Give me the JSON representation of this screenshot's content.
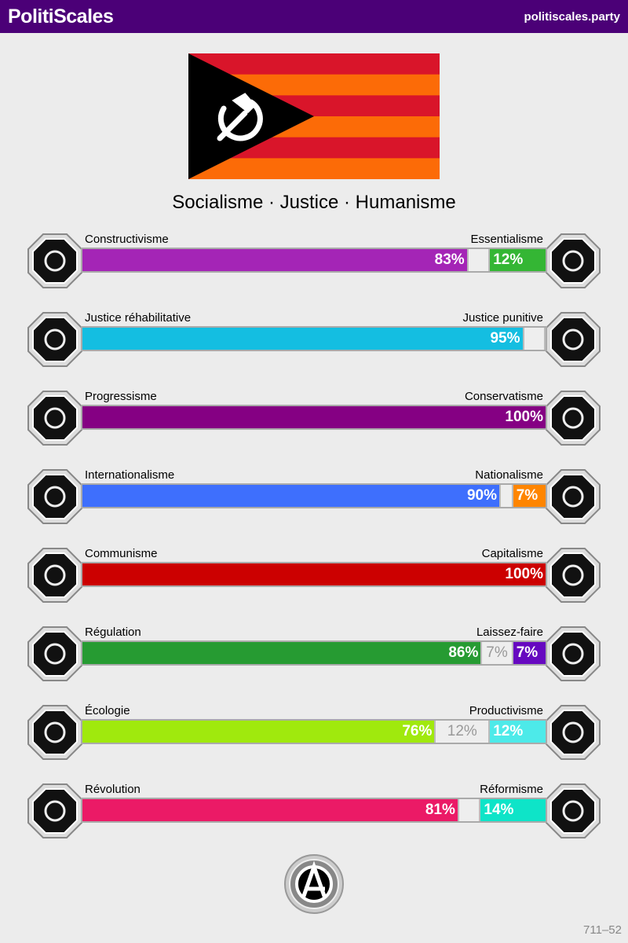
{
  "header": {
    "brand": "PolitiScales",
    "site": "politiscales.party"
  },
  "flag": {
    "stripes": [
      "#d9152a",
      "#fc6b07"
    ],
    "triangle": "#000000",
    "emblem": "hammer-and-sickle-icon"
  },
  "slogan": "Socialisme · Justice · Humanisme",
  "axes": [
    {
      "left": "Constructivisme",
      "right": "Essentialisme",
      "left_pct": 83,
      "neutral_pct": 5,
      "right_pct": 12,
      "left_color": "#a425b6",
      "right_color": "#34b634",
      "left_icon": "eye-icon",
      "right_icon": "flower-icon"
    },
    {
      "left": "Justice réhabilitative",
      "right": "Justice punitive",
      "left_pct": 95,
      "neutral_pct": 5,
      "right_pct": 0,
      "left_color": "#14bee1",
      "right_color": "#e6cc27",
      "left_icon": "handshake-icon",
      "right_icon": "prison-bars-icon"
    },
    {
      "left": "Progressisme",
      "right": "Conservatisme",
      "left_pct": 100,
      "neutral_pct": 0,
      "right_pct": 0,
      "left_color": "#850083",
      "right_color": "#970000",
      "left_icon": "rocket-icon",
      "right_icon": "quill-icon"
    },
    {
      "left": "Internationalisme",
      "right": "Nationalisme",
      "left_pct": 90,
      "neutral_pct": 3,
      "right_pct": 7,
      "left_color": "#3e6ffd",
      "right_color": "#ff8500",
      "left_icon": "globe-icon",
      "right_icon": "flag-icon"
    },
    {
      "left": "Communisme",
      "right": "Capitalisme",
      "left_pct": 100,
      "neutral_pct": 0,
      "right_pct": 0,
      "left_color": "#cc0000",
      "right_color": "#ffb800",
      "left_icon": "hammer-sickle-icon",
      "right_icon": "money-bag-icon"
    },
    {
      "left": "Régulation",
      "right": "Laissez-faire",
      "left_pct": 86,
      "neutral_pct": 7,
      "right_pct": 7,
      "left_color": "#269b32",
      "right_color": "#6608c0",
      "left_icon": "ruler-icon",
      "right_icon": "butterfly-icon"
    },
    {
      "left": "Écologie",
      "right": "Productivisme",
      "left_pct": 76,
      "neutral_pct": 12,
      "right_pct": 12,
      "left_color": "#a0e90d",
      "right_color": "#4deae9",
      "left_icon": "plant-icon",
      "right_icon": "gear-icon"
    },
    {
      "left": "Révolution",
      "right": "Réformisme",
      "left_pct": 81,
      "neutral_pct": 5,
      "right_pct": 14,
      "left_color": "#eb1a66",
      "right_color": "#0ee4c8",
      "left_icon": "torch-icon",
      "right_icon": "parliament-icon"
    }
  ],
  "seal": {
    "icon": "anarchism-seal-icon",
    "text": "ANARCHISME"
  },
  "code": "711–52"
}
